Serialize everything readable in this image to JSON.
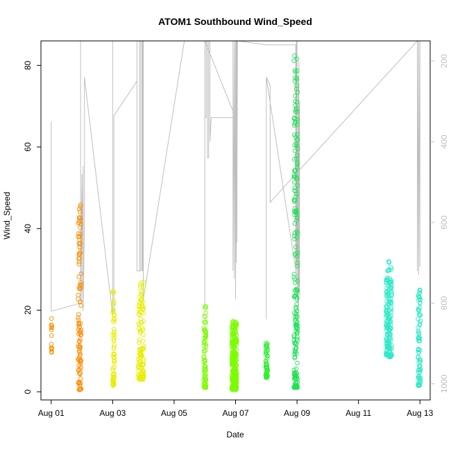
{
  "chart_data": {
    "type": "scatter",
    "title": "ATOM1 Southbound Wind_Speed",
    "xlabel": "Date",
    "ylabel": "Wind_Speed",
    "xlim": [
      "2023-07-31T16:00",
      "2023-08-13T08:00"
    ],
    "ylim": [
      -2,
      86
    ],
    "x_ticks": [
      {
        "date": "2023-08-01",
        "label": "Aug 01"
      },
      {
        "date": "2023-08-03",
        "label": "Aug 03"
      },
      {
        "date": "2023-08-05",
        "label": "Aug 05"
      },
      {
        "date": "2023-08-07",
        "label": "Aug 07"
      },
      {
        "date": "2023-08-09",
        "label": "Aug 09"
      },
      {
        "date": "2023-08-11",
        "label": "Aug 11"
      },
      {
        "date": "2023-08-13",
        "label": "Aug 13"
      }
    ],
    "y_ticks": [
      0,
      20,
      40,
      60,
      80
    ],
    "right_axis": {
      "ticks": [
        200,
        400,
        600,
        800,
        1000
      ],
      "ylim": [
        1040,
        150
      ],
      "color": "#bebebe"
    },
    "pressure_trace": {
      "color": "#bebebe",
      "points": [
        [
          "2023-08-01T00:00",
          815
        ],
        [
          "2023-08-01T00:00",
          350
        ],
        [
          "2023-08-01T00:00",
          820
        ],
        [
          "2023-08-01T23:00",
          800
        ],
        [
          "2023-08-01T23:00",
          150
        ],
        [
          "2023-08-01T23:00",
          800
        ],
        [
          "2023-08-02T00:00",
          500
        ],
        [
          "2023-08-02T00:00",
          800
        ],
        [
          "2023-08-02T00:00",
          480
        ],
        [
          "2023-08-02T01:00",
          700
        ],
        [
          "2023-08-02T01:00",
          460
        ],
        [
          "2023-08-02T01:00",
          820
        ],
        [
          "2023-08-02T02:00",
          600
        ],
        [
          "2023-08-02T02:00",
          240
        ],
        [
          "2023-08-03T00:00",
          830
        ],
        [
          "2023-08-03T00:00",
          150
        ],
        [
          "2023-08-03T00:00",
          820
        ],
        [
          "2023-08-03T01:00",
          820
        ],
        [
          "2023-08-03T01:00",
          335
        ],
        [
          "2023-08-03T19:00",
          250
        ],
        [
          "2023-08-03T19:00",
          150
        ],
        [
          "2023-08-03T19:00",
          720
        ],
        [
          "2023-08-03T21:00",
          720
        ],
        [
          "2023-08-03T21:00",
          150
        ],
        [
          "2023-08-03T21:00",
          720
        ],
        [
          "2023-08-03T22:00",
          720
        ],
        [
          "2023-08-03T22:00",
          150
        ],
        [
          "2023-08-03T23:00",
          150
        ],
        [
          "2023-08-03T23:00",
          720
        ],
        [
          "2023-08-03T23:30",
          720
        ],
        [
          "2023-08-03T23:30",
          150
        ],
        [
          "2023-08-04T00:00",
          150
        ],
        [
          "2023-08-04T00:00",
          790
        ],
        [
          "2023-08-05T08:00",
          150
        ],
        [
          "2023-08-06T00:00",
          150
        ],
        [
          "2023-08-06T00:00",
          810
        ],
        [
          "2023-08-06T00:00",
          340
        ],
        [
          "2023-08-06T01:00",
          340
        ],
        [
          "2023-08-06T01:00",
          150
        ],
        [
          "2023-08-06T02:00",
          150
        ],
        [
          "2023-08-06T02:00",
          440
        ],
        [
          "2023-08-06T03:00",
          440
        ],
        [
          "2023-08-06T03:00",
          150
        ],
        [
          "2023-08-06T04:00",
          150
        ],
        [
          "2023-08-06T04:00",
          400
        ],
        [
          "2023-08-06T05:00",
          340
        ],
        [
          "2023-08-07T00:00",
          340
        ],
        [
          "2023-08-06T00:00",
          150
        ],
        [
          "2023-08-06T00:00",
          370
        ],
        [
          "2023-08-06T00:00",
          150
        ],
        [
          "2023-08-06T22:00",
          150
        ],
        [
          "2023-08-06T22:00",
          720
        ],
        [
          "2023-08-06T23:00",
          150
        ],
        [
          "2023-08-06T23:00",
          740
        ],
        [
          "2023-08-07T00:00",
          150
        ],
        [
          "2023-08-07T00:00",
          790
        ],
        [
          "2023-08-07T00:30",
          150
        ],
        [
          "2023-08-07T00:30",
          700
        ],
        [
          "2023-08-07T01:00",
          150
        ],
        [
          "2023-08-07T01:00",
          650
        ],
        [
          "2023-08-07T01:30",
          150
        ],
        [
          "2023-08-08T00:00",
          160
        ],
        [
          "2023-08-08T23:00",
          160
        ],
        [
          "2023-08-08T23:00",
          700
        ],
        [
          "2023-08-08T23:30",
          150
        ],
        [
          "2023-08-08T23:30",
          720
        ],
        [
          "2023-08-09T00:00",
          150
        ],
        [
          "2023-08-09T00:00",
          700
        ],
        [
          "2023-08-09T00:30",
          400
        ],
        [
          "2023-08-09T00:30",
          800
        ],
        [
          "2023-08-09T01:00",
          250
        ],
        [
          "2023-08-09T01:00",
          820
        ],
        [
          "2023-08-09T01:30",
          200
        ],
        [
          "2023-08-09T01:30",
          760
        ],
        [
          "2023-08-09T02:00",
          300
        ],
        [
          "2023-08-09T02:00",
          780
        ],
        [
          "2023-08-08T00:00",
          240
        ],
        [
          "2023-08-08T00:00",
          840
        ],
        [
          "2023-08-08T00:00",
          240
        ],
        [
          "2023-08-08T03:00",
          260
        ],
        [
          "2023-08-08T03:00",
          550
        ],
        [
          "2023-08-12T22:00",
          150
        ],
        [
          "2023-08-12T22:00",
          720
        ],
        [
          "2023-08-12T23:00",
          150
        ],
        [
          "2023-08-12T23:00",
          730
        ],
        [
          "2023-08-13T00:00",
          150
        ],
        [
          "2023-08-13T00:00",
          710
        ]
      ]
    },
    "series": [
      {
        "color": "#ff8c00",
        "clusters": [
          {
            "x_from": "2023-08-01T00:00",
            "x_to": "2023-08-01T00:30",
            "n": 14,
            "y_min": 9,
            "y_max": 18
          },
          {
            "x_from": "2023-08-01T21:00",
            "x_to": "2023-08-01T23:30",
            "n": 110,
            "y_min": 0.5,
            "y_max": 46
          }
        ]
      },
      {
        "color": "#e6ee00",
        "clusters": [
          {
            "x_from": "2023-08-03T00:00",
            "x_to": "2023-08-03T01:30",
            "n": 60,
            "y_min": 1.5,
            "y_max": 25
          },
          {
            "x_from": "2023-08-03T20:00",
            "x_to": "2023-08-04T00:30",
            "n": 110,
            "y_min": 3,
            "y_max": 27
          }
        ]
      },
      {
        "color": "#7cfc00",
        "clusters": [
          {
            "x_from": "2023-08-05T23:00",
            "x_to": "2023-08-06T01:00",
            "n": 70,
            "y_min": 1,
            "y_max": 22
          },
          {
            "x_from": "2023-08-06T21:00",
            "x_to": "2023-08-07T01:00",
            "n": 260,
            "y_min": 0.5,
            "y_max": 18
          }
        ]
      },
      {
        "color": "#33ee33",
        "clusters": [
          {
            "x_from": "2023-08-07T23:30",
            "x_to": "2023-08-08T01:00",
            "n": 60,
            "y_min": 3.5,
            "y_max": 12
          }
        ]
      },
      {
        "color": "#22e055",
        "clusters": [
          {
            "x_from": "2023-08-08T21:30",
            "x_to": "2023-08-09T00:30",
            "n": 200,
            "y_min": 1,
            "y_max": 83
          }
        ]
      },
      {
        "color": "#2ee8c8",
        "clusters": [
          {
            "x_from": "2023-08-11T21:30",
            "x_to": "2023-08-12T02:00",
            "n": 160,
            "y_min": 8.5,
            "y_max": 32
          },
          {
            "x_from": "2023-08-12T22:30",
            "x_to": "2023-08-13T00:30",
            "n": 80,
            "y_min": 1.5,
            "y_max": 25
          }
        ]
      }
    ],
    "grid": false,
    "legend": "none"
  }
}
